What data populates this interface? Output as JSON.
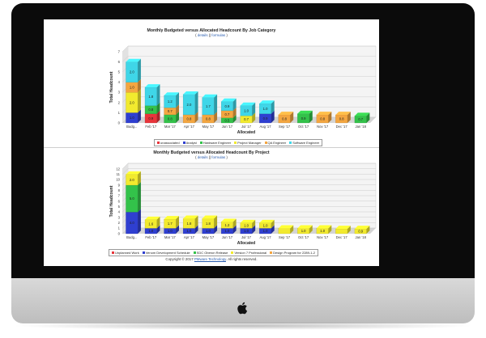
{
  "colors": {
    "unassociated": "#e8353b",
    "analyst": "#2f3fd1",
    "hardware": "#33c24a",
    "pm": "#f2ea2e",
    "qa": "#f4a640",
    "sw": "#3fd6e8",
    "p_unplanned": "#e8353b",
    "p_venom": "#2f3fd1",
    "p_sdc": "#33c24a",
    "p_v7": "#f2ea2e",
    "p_design": "#f4a640"
  },
  "chart1": {
    "title": "Monthly Budgeted versus Allocated Headcount By Job Category",
    "links": {
      "details": "details",
      "sep": "||",
      "formulas": "formulas",
      "open": "(",
      "close": ")"
    }
  },
  "chart2": {
    "title": "Monthly Budgeted versus Allocated Headcount By Project",
    "links": {
      "details": "details",
      "sep": "||",
      "formulas": "formulas",
      "open": "(",
      "close": ")"
    }
  },
  "footer": {
    "prefix": "Copyright © 2017",
    "link": "PMware Technology",
    "suffix": ". All rights reserved."
  },
  "chart_data": [
    {
      "type": "bar",
      "title": "Monthly Budgeted versus Allocated Headcount By Job Category",
      "xlabel": "Allocated",
      "ylabel": "Total Headcount",
      "ylim": [
        0,
        7
      ],
      "yticks": [
        0,
        1,
        2,
        3,
        4,
        5,
        6,
        7
      ],
      "categories": [
        "Budg...",
        "Feb '17",
        "Mar '17",
        "Apr '17",
        "May '17",
        "Jun '17",
        "Jul '17",
        "Aug '17",
        "Sep '17",
        "Oct '17",
        "Nov '17",
        "Dec '17",
        "Jan '18"
      ],
      "legend_position": "bottom",
      "series": [
        {
          "name": "unassociated",
          "key": "unassociated",
          "values": [
            0,
            0.9,
            0,
            0,
            0,
            0,
            0,
            0,
            0,
            0,
            0,
            0,
            0
          ],
          "labels": [
            "",
            "0.9",
            "",
            "",
            "",
            "",
            "",
            "",
            "",
            "",
            "",
            "",
            ""
          ]
        },
        {
          "name": "Analyst",
          "key": "analyst",
          "values": [
            1.0,
            0,
            0,
            0,
            0,
            0,
            0,
            0.9,
            0,
            0,
            0,
            0,
            0
          ],
          "labels": [
            "1.0",
            "",
            "",
            "",
            "",
            "",
            "",
            "0.9",
            "",
            "",
            "",
            "",
            ""
          ]
        },
        {
          "name": "Hardware Engineer",
          "key": "hardware",
          "values": [
            0,
            0.8,
            0.8,
            0,
            0,
            0.5,
            0,
            0,
            0,
            0.9,
            0,
            0,
            0.7
          ],
          "labels": [
            "",
            "0.8",
            "0.8",
            "",
            "",
            "0.5",
            "",
            "",
            "",
            "0.9",
            "",
            "",
            "0.7"
          ]
        },
        {
          "name": "Project Manager",
          "key": "pm",
          "values": [
            2.0,
            0,
            0,
            0,
            0,
            0,
            0.7,
            0,
            0,
            0,
            0,
            0,
            0
          ],
          "labels": [
            "2.0",
            "",
            "",
            "",
            "",
            "",
            "0.7",
            "",
            "",
            "",
            "",
            "",
            ""
          ]
        },
        {
          "name": "QA Engineer",
          "key": "qa",
          "values": [
            1.0,
            0,
            0.7,
            0.8,
            0.8,
            0.7,
            0,
            0,
            0.8,
            0,
            0.8,
            0.8,
            0
          ],
          "labels": [
            "1.0",
            "",
            "0.7",
            "0.8",
            "0.8",
            "0.7",
            "",
            "",
            "0.8",
            "",
            "0.8",
            "0.8",
            ""
          ]
        },
        {
          "name": "Software Engineer",
          "key": "sw",
          "values": [
            2.0,
            1.8,
            1.2,
            2.0,
            1.7,
            0.9,
            1.0,
            1.0,
            0,
            0,
            0,
            0,
            0
          ],
          "labels": [
            "2.0",
            "1.8",
            "1.2",
            "2.0",
            "1.7",
            "0.9",
            "1.0",
            "1.0",
            "",
            "",
            "",
            "",
            ""
          ]
        }
      ]
    },
    {
      "type": "bar",
      "title": "Monthly Budgeted versus Allocated Headcount By Project",
      "xlabel": "Allocated",
      "ylabel": "Total Headcount",
      "ylim": [
        0,
        12
      ],
      "yticks": [
        0,
        1,
        2,
        3,
        4,
        5,
        6,
        7,
        8,
        9,
        10,
        11,
        12
      ],
      "categories": [
        "Budg...",
        "Feb '17",
        "Mar '17",
        "Apr '17",
        "May '17",
        "Jun '17",
        "Jul '17",
        "Aug '17",
        "Sep '17",
        "Oct '17",
        "Nov '17",
        "Dec '17",
        "Jan '18"
      ],
      "legend_position": "bottom",
      "series": [
        {
          "name": "Unplanned Work",
          "key": "p_unplanned",
          "values": [
            0,
            0,
            0,
            0,
            0,
            0,
            0,
            0,
            0,
            0,
            0,
            0,
            0
          ],
          "labels": [
            "",
            "",
            "",
            "",
            "",
            "",
            "",
            "",
            "",
            "",
            "",
            "",
            ""
          ]
        },
        {
          "name": "Venom Development Schedule",
          "key": "p_venom",
          "values": [
            4.0,
            1.0,
            1.0,
            1.0,
            1.0,
            1.0,
            1.0,
            1.0,
            0,
            0,
            0,
            0,
            0
          ],
          "labels": [
            "4.0",
            "1.0",
            "1.0",
            "1.0",
            "1.0",
            "1.0",
            "1.0",
            "1.0",
            "",
            "",
            "",
            "",
            ""
          ]
        },
        {
          "name": "SDC Oberon Release",
          "key": "p_sdc",
          "values": [
            5.0,
            0,
            0,
            0,
            0,
            0,
            0,
            0,
            0,
            0,
            0,
            0,
            0
          ],
          "labels": [
            "5.0",
            "",
            "",
            "",
            "",
            "",
            "",
            "",
            "",
            "",
            "",
            "",
            ""
          ]
        },
        {
          "name": "Version 7 Professional",
          "key": "p_v7",
          "values": [
            2.0,
            1.6,
            1.7,
            1.8,
            1.8,
            1.2,
            1.0,
            1.0,
            1.0,
            1.0,
            1.0,
            0.9,
            0.9
          ],
          "labels": [
            "2.0",
            "1.6",
            "1.7",
            "1.8",
            "1.8",
            "1.2",
            "1.0",
            "1.0",
            "",
            "1.0",
            "1.0",
            "",
            "0.9"
          ]
        },
        {
          "name": "Design Program for 2289-1-2",
          "key": "p_design",
          "values": [
            0,
            0,
            0,
            0,
            0,
            0,
            0,
            0,
            0,
            0,
            0,
            0,
            0
          ],
          "labels": [
            "",
            "",
            "",
            "",
            "",
            "",
            "",
            "",
            "",
            "",
            "",
            "",
            ""
          ]
        }
      ]
    }
  ]
}
